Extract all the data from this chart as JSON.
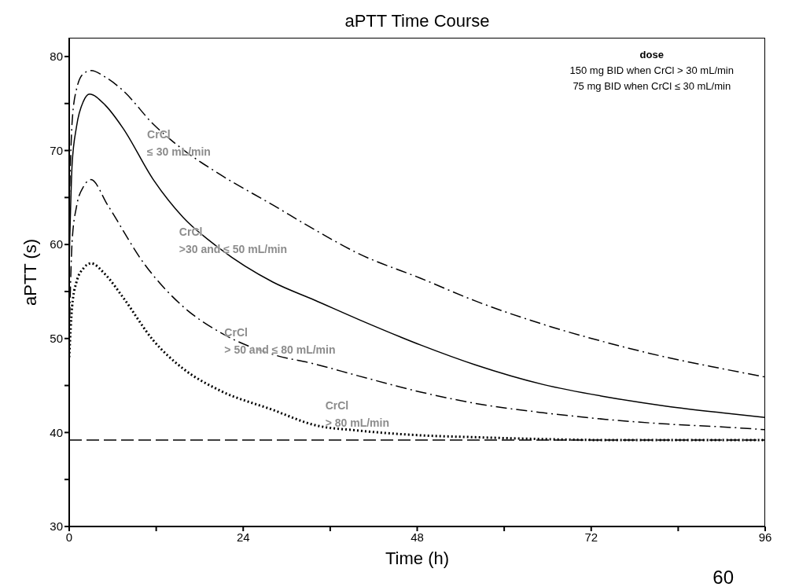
{
  "chart_data": {
    "type": "line",
    "title": "aPTT Time Course",
    "xlabel": "Time (h)",
    "ylabel": "aPTT (s)",
    "xlim": [
      0,
      96
    ],
    "xticks": [
      0,
      {
        "value": 12,
        "label": null
      },
      24,
      {
        "value": 36,
        "label": null
      },
      48,
      {
        "value": 60,
        "label": null
      },
      72,
      {
        "value": 84,
        "label": null
      },
      96
    ],
    "ylim": [
      30,
      82
    ],
    "yticks": [
      30,
      {
        "value": 35,
        "label": null
      },
      40,
      {
        "value": 45,
        "label": null
      },
      50,
      {
        "value": 55,
        "label": null
      },
      60,
      {
        "value": 65,
        "label": null
      },
      70,
      {
        "value": 75,
        "label": null
      },
      80
    ],
    "marker": "none",
    "series": [
      {
        "color": "#000000",
        "line_style": "dashed",
        "x": [
          0,
          0.4,
          1,
          2,
          3,
          5,
          7.4,
          11.6,
          15.7,
          20.7,
          28.1,
          33.8,
          40,
          48.5,
          56,
          65.4,
          74,
          82.4,
          90,
          96
        ],
        "values": [
          64,
          73,
          76.5,
          78.2,
          78.5,
          77.8,
          76.4,
          72.8,
          70.1,
          67.5,
          64.2,
          61.6,
          59,
          56.4,
          54,
          51.5,
          49.6,
          48,
          46.8,
          45.9
        ]
      },
      {
        "color": "#000000",
        "line_style": "solid",
        "x": [
          0,
          0.4,
          1,
          2,
          2.8,
          5,
          7.4,
          11.6,
          15.7,
          20.7,
          28.1,
          33.8,
          40,
          48.5,
          56,
          65.4,
          74,
          82.4,
          90,
          96
        ],
        "values": [
          58,
          68.5,
          72.5,
          75.3,
          76,
          74.8,
          72.4,
          66.9,
          62.9,
          59.6,
          56,
          54.1,
          52,
          49.3,
          47.2,
          45.1,
          43.8,
          42.8,
          42.1,
          41.6
        ]
      },
      {
        "color": "#000000",
        "line_style": "dashed",
        "x": [
          0,
          0.4,
          1,
          2,
          3,
          5.3,
          10.3,
          15.7,
          20.7,
          28.1,
          33.8,
          40,
          48.5,
          56,
          65.4,
          74,
          82.4,
          90,
          96
        ],
        "values": [
          50,
          60.3,
          64,
          66.2,
          66.9,
          64.2,
          58,
          53.4,
          50.7,
          48.3,
          47.3,
          46,
          44.3,
          43.1,
          42.1,
          41.4,
          40.9,
          40.6,
          40.3
        ]
      },
      {
        "color": "#000000",
        "line_style": "dotted",
        "x": [
          0,
          0.4,
          1,
          2,
          3,
          5,
          7.4,
          11.6,
          15.7,
          20.7,
          28.1,
          33.8,
          40,
          48.5,
          56,
          65.4,
          74,
          82.4,
          90,
          96
        ],
        "values": [
          48,
          53.4,
          56,
          57.5,
          58,
          56.8,
          54.4,
          49.8,
          46.8,
          44.5,
          42.4,
          40.8,
          40.2,
          39.7,
          39.5,
          39.3,
          39.2,
          39.2,
          39.2,
          39.2
        ]
      }
    ],
    "ref_lines": [
      {
        "axis": "y",
        "value": 39.2,
        "label": null,
        "color": "#000000",
        "line_style": "dashed"
      }
    ],
    "annotations": [
      "CrCl\n≤ 30 mL/min",
      "CrCl\n>30 and ≤ 50 mL/min",
      "CrCl\n> 50 and ≤ 80 mL/min",
      "CrCl\n> 80 mL/min",
      "dose",
      "150 mg BID when CrCl > 30 mL/min",
      "75 mg BID when CrCl ≤ 30 mL/min",
      "60"
    ]
  }
}
